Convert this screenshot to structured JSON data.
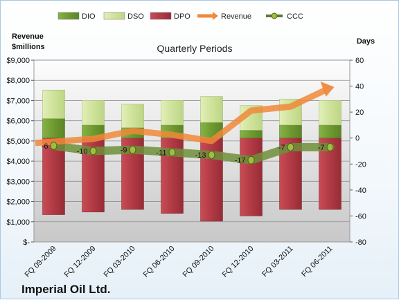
{
  "chart_data": {
    "type": "bar",
    "title": "Quarterly Periods",
    "company": "Imperial Oil Ltd.",
    "left_axis_title": [
      "Revenue",
      "$millions"
    ],
    "right_axis_title": "Days",
    "left_ticks": [
      "$-",
      "$1,000",
      "$2,000",
      "$3,000",
      "$4,000",
      "$5,000",
      "$6,000",
      "$7,000",
      "$8,000",
      "$9,000"
    ],
    "right_ticks": [
      "-80",
      "-60",
      "-40",
      "-20",
      "0",
      "20",
      "40",
      "60"
    ],
    "ylim_left": [
      0,
      9000
    ],
    "ylim_right": [
      -80,
      60
    ],
    "categories": [
      "FQ 09-2009",
      "FQ 12-2009",
      "FQ 03-2010",
      "FQ 06-2010",
      "FQ 09-2010",
      "FQ 12-2010",
      "FQ 03-2011",
      "FQ 06-2011"
    ],
    "series": [
      {
        "name": "DIO",
        "axis": "days",
        "values": [
          15,
          10,
          8,
          10,
          12,
          6,
          10,
          10
        ],
        "color": "#7aa43a"
      },
      {
        "name": "DSO",
        "axis": "days",
        "values": [
          22,
          19,
          18,
          19,
          20,
          19,
          20,
          19
        ],
        "color": "#d6e7a6"
      },
      {
        "name": "DPO",
        "axis": "days",
        "values": [
          -59,
          -57,
          -55,
          -58,
          -64,
          -60,
          -55,
          -55
        ],
        "color": "#b8404a"
      },
      {
        "name": "Revenue",
        "axis": "revenue",
        "values": [
          4900,
          5100,
          5500,
          5300,
          5000,
          6500,
          6700,
          7600
        ],
        "color": "#f08a3c"
      },
      {
        "name": "CCC",
        "axis": "days",
        "values": [
          -6,
          -10,
          -9,
          -11,
          -13,
          -17,
          -7,
          -7
        ],
        "labels": [
          "-6",
          "-10",
          "-9",
          "-11",
          "-13",
          "-17",
          "-7",
          "-7"
        ],
        "color": "#5a7a2e"
      }
    ],
    "legend": [
      "DIO",
      "DSO",
      "DPO",
      "Revenue",
      "CCC"
    ],
    "legend_position": "top",
    "grid": true
  }
}
